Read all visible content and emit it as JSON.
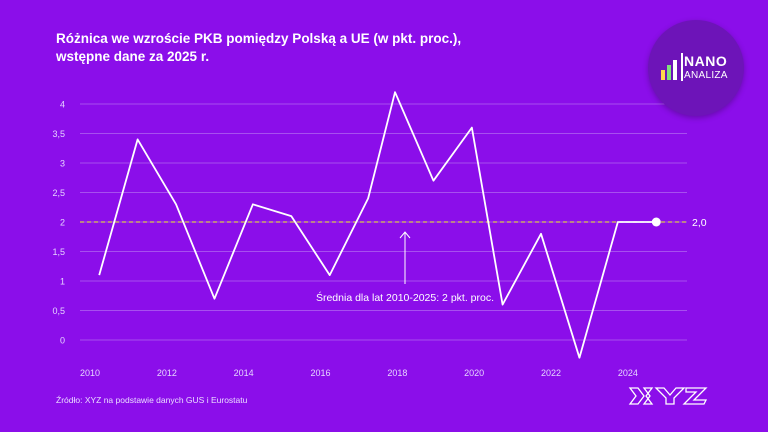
{
  "title_line1": "Różnica we wzroście PKB pomiędzy Polską a UE (w pkt. proc.),",
  "title_line2": "wstępne dane za 2025 r.",
  "source": "Źródło: XYZ na podstawie danych GUS i Eurostatu",
  "logo": {
    "nano": "NANO",
    "analiza": "ANALIZA"
  },
  "colors": {
    "background": "#8b0eea",
    "line": "#ffffff",
    "grid": "#b066f0",
    "average": "#d9c94a"
  },
  "chart_data": {
    "type": "line",
    "x": [
      2010.5,
      2011.5,
      2012.5,
      2013.5,
      2014.5,
      2015.5,
      2016.5,
      2017.5,
      2018.2,
      2019.2,
      2020.2,
      2021,
      2022,
      2023,
      2024,
      2025
    ],
    "values": [
      1.1,
      3.4,
      2.3,
      0.7,
      2.3,
      2.1,
      1.1,
      2.4,
      4.2,
      2.7,
      3.6,
      0.6,
      1.8,
      -0.3,
      2.0,
      2.0
    ],
    "xlim": [
      2010,
      2025.8
    ],
    "ylim": [
      -0.3,
      4.2
    ],
    "x_ticks": [
      "2010",
      "2012",
      "2014",
      "2016",
      "2018",
      "2020",
      "2022",
      "2024"
    ],
    "y_ticks": [
      "4",
      "3,5",
      "3",
      "2,5",
      "2",
      "1,5",
      "1",
      "0,5",
      "0"
    ],
    "average_value": 2,
    "average_label": "Średnia dla lat 2010-2025: 2 pkt. proc.",
    "last_value_label": "2,0",
    "grid": true
  }
}
